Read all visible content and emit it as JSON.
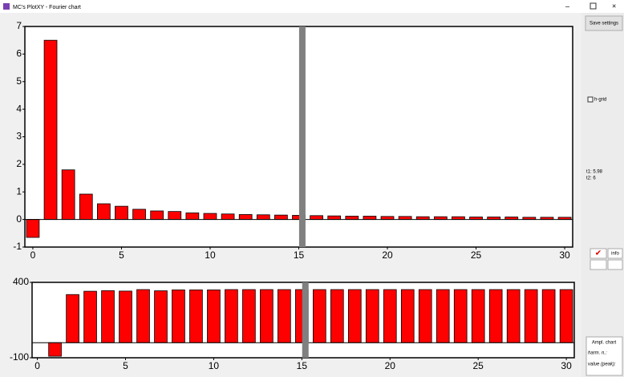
{
  "window": {
    "title": "MC's PlotXY - Fourier chart"
  },
  "panel": {
    "save_button": "Save settings",
    "h_grid_label": "h-grid",
    "h_grid": false,
    "t1": "t1: 5.98",
    "t2": "t2: 6",
    "info_button": "info",
    "ampl_button": "Ampl. chart",
    "harm_label": "harm. n.:",
    "value_label": "value (peak):"
  },
  "chart_data": [
    {
      "type": "bar",
      "color": "#ff0000",
      "x": [
        0,
        1,
        2,
        3,
        4,
        5,
        6,
        7,
        8,
        9,
        10,
        11,
        12,
        13,
        14,
        15,
        16,
        17,
        18,
        19,
        20,
        21,
        22,
        23,
        24,
        25,
        26,
        27,
        28,
        29,
        30
      ],
      "values": [
        -0.65,
        6.5,
        1.8,
        0.92,
        0.57,
        0.48,
        0.37,
        0.31,
        0.29,
        0.24,
        0.22,
        0.2,
        0.18,
        0.17,
        0.16,
        0.15,
        0.14,
        0.13,
        0.12,
        0.12,
        0.11,
        0.11,
        0.1,
        0.1,
        0.1,
        0.09,
        0.09,
        0.09,
        0.08,
        0.08,
        0.08
      ],
      "xlim": [
        -0.45,
        30.45
      ],
      "xticks": [
        0,
        5,
        10,
        15,
        20,
        25,
        30
      ],
      "ylim": [
        -1,
        7
      ],
      "yticks": [
        -1,
        0,
        1,
        2,
        3,
        4,
        5,
        6,
        7
      ],
      "cursor": 15.2
    },
    {
      "type": "bar",
      "color": "#ff0000",
      "x": [
        0,
        1,
        2,
        3,
        4,
        5,
        6,
        7,
        8,
        9,
        10,
        11,
        12,
        13,
        14,
        15,
        16,
        17,
        18,
        19,
        20,
        21,
        22,
        23,
        24,
        25,
        26,
        27,
        28,
        29,
        30
      ],
      "values": [
        0,
        -90,
        319,
        341,
        345,
        342,
        352,
        344,
        350,
        350,
        350,
        352,
        352,
        352,
        352,
        352,
        352,
        352,
        352,
        352,
        352,
        352,
        352,
        352,
        352,
        352,
        352,
        352,
        352,
        352,
        352
      ],
      "xlim": [
        -0.3,
        30.45
      ],
      "xticks": [
        0,
        5,
        10,
        15,
        20,
        25,
        30
      ],
      "ylim": [
        -100,
        400
      ],
      "yticks": [
        -100,
        400
      ],
      "cursor": 15.2
    }
  ]
}
